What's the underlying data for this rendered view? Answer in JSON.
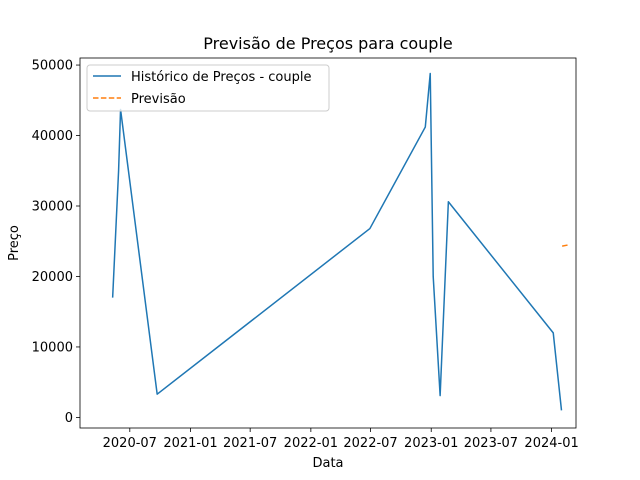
{
  "chart_data": {
    "type": "line",
    "title": "Previsão de Preços para couple",
    "xlabel": "Data",
    "ylabel": "Preço",
    "x_axis_type": "date",
    "xlim": [
      "2020-02-01",
      "2024-03-15"
    ],
    "ylim": [
      -1500,
      51000
    ],
    "x_ticks": [
      "2020-07",
      "2021-01",
      "2021-07",
      "2022-01",
      "2022-07",
      "2023-01",
      "2023-07",
      "2024-01"
    ],
    "y_ticks": [
      0,
      10000,
      20000,
      30000,
      40000,
      50000
    ],
    "grid": false,
    "legend_position": "top-left",
    "series": [
      {
        "name": "Histórico de Preços - couple",
        "style": "solid",
        "color": "#1f77b4",
        "points": [
          {
            "x": "2020-05-10",
            "y": 17000
          },
          {
            "x": "2020-05-28",
            "y": 35000
          },
          {
            "x": "2020-06-03",
            "y": 43700
          },
          {
            "x": "2020-09-22",
            "y": 3300
          },
          {
            "x": "2022-06-29",
            "y": 26800
          },
          {
            "x": "2022-12-14",
            "y": 41200
          },
          {
            "x": "2022-12-29",
            "y": 48800
          },
          {
            "x": "2023-01-07",
            "y": 20000
          },
          {
            "x": "2023-01-28",
            "y": 3100
          },
          {
            "x": "2023-02-22",
            "y": 30600
          },
          {
            "x": "2024-01-06",
            "y": 12000
          },
          {
            "x": "2024-01-31",
            "y": 1000
          }
        ]
      },
      {
        "name": "Previsão",
        "style": "dashed",
        "color": "#ff7f0e",
        "points": [
          {
            "x": "2024-02-02",
            "y": 24300
          },
          {
            "x": "2024-02-23",
            "y": 24500
          }
        ]
      }
    ]
  }
}
